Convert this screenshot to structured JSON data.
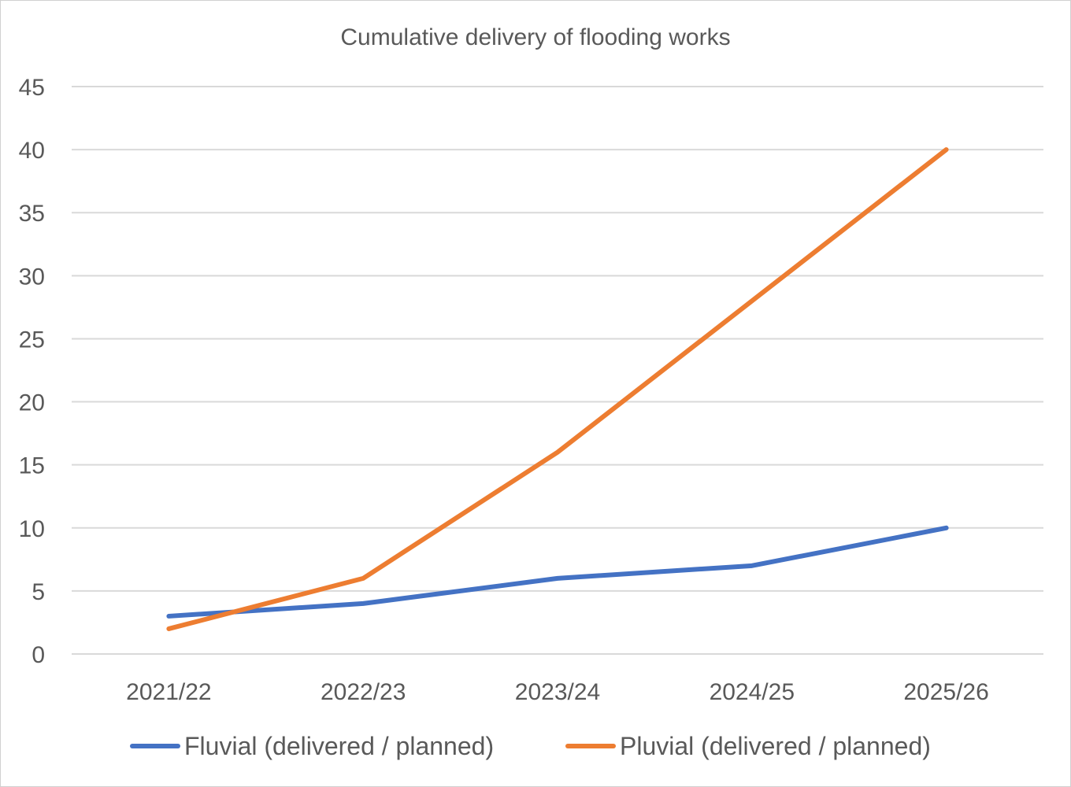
{
  "chart_data": {
    "type": "line",
    "title": "Cumulative delivery of flooding works",
    "xlabel": "",
    "ylabel": "",
    "categories": [
      "2021/22",
      "2022/23",
      "2023/24",
      "2024/25",
      "2025/26"
    ],
    "ylim": [
      0,
      45
    ],
    "yticks": [
      0,
      5,
      10,
      15,
      20,
      25,
      30,
      35,
      40,
      45
    ],
    "grid": true,
    "legend_position": "bottom",
    "series": [
      {
        "name": "Fluvial (delivered / planned)",
        "color": "#4472C4",
        "values": [
          3,
          4,
          6,
          7,
          10
        ]
      },
      {
        "name": "Pluvial (delivered / planned)",
        "color": "#ED7D31",
        "values": [
          2,
          6,
          16,
          28,
          40
        ]
      }
    ]
  }
}
